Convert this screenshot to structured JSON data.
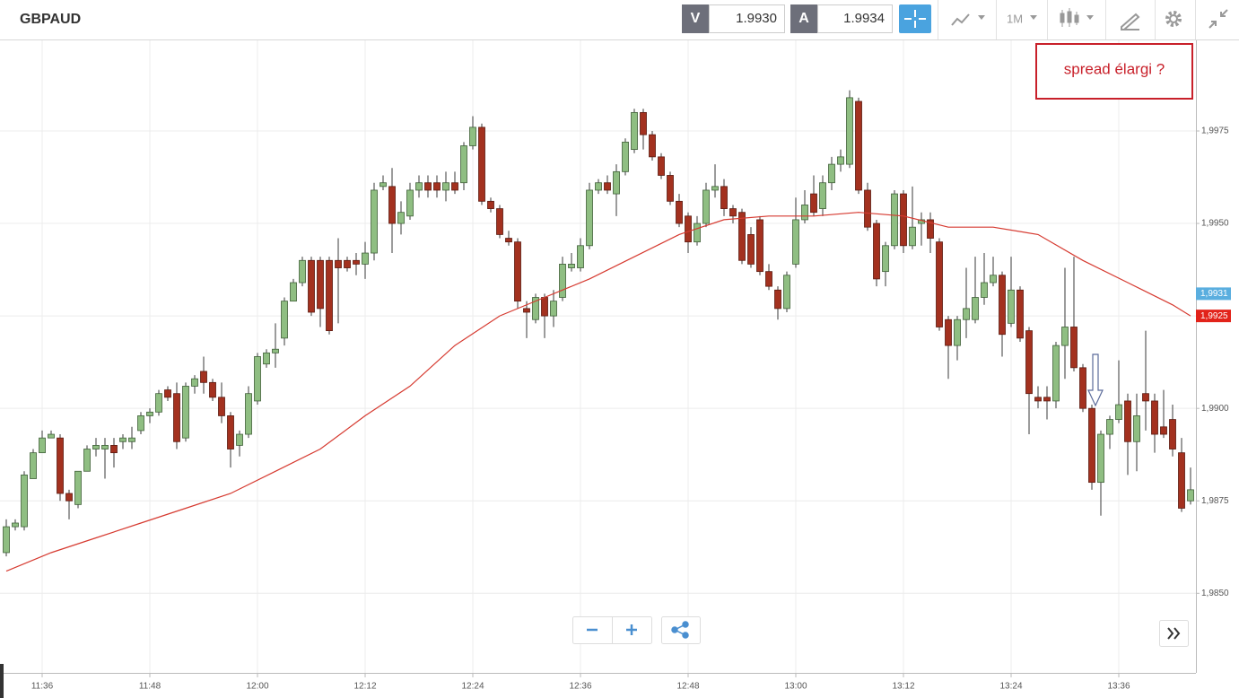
{
  "header": {
    "symbol": "GBPAUD",
    "sell": {
      "label": "V",
      "price": "1.9930"
    },
    "buy": {
      "label": "A",
      "price": "1.9934"
    },
    "timeframe": "1M"
  },
  "chart_data": {
    "type": "candlestick",
    "x": [
      692,
      693,
      694,
      695,
      696,
      697,
      698,
      699,
      700,
      701,
      702,
      703,
      704,
      705,
      706,
      707,
      708,
      709,
      710,
      711,
      712,
      713,
      714,
      715,
      716,
      717,
      718,
      719,
      720,
      721,
      722,
      723,
      724,
      725,
      726,
      727,
      728,
      729,
      730,
      731,
      732,
      733,
      734,
      735,
      736,
      737,
      738,
      739,
      740,
      741,
      742,
      743,
      744,
      745,
      746,
      747,
      748,
      749,
      750,
      751,
      752,
      753,
      754,
      755,
      756,
      757,
      758,
      759,
      760,
      761,
      762,
      763,
      764,
      765,
      766,
      767,
      768,
      769,
      770,
      771,
      772,
      773,
      774,
      775,
      776,
      777,
      778,
      779,
      780,
      781,
      782,
      783,
      784,
      785,
      786,
      787,
      788,
      789,
      790,
      791,
      792,
      793,
      794,
      795,
      796,
      797,
      798,
      799,
      800,
      801,
      802,
      803,
      804,
      805,
      806,
      807,
      808,
      809,
      810,
      811,
      812,
      813,
      814,
      815,
      816,
      817,
      818,
      819,
      820,
      821,
      822,
      823,
      824
    ],
    "open": [
      1.9861,
      1.9868,
      1.9868,
      1.9881,
      1.9888,
      1.9892,
      1.9892,
      1.9877,
      1.9874,
      1.9883,
      1.9889,
      1.9889,
      1.989,
      1.9891,
      1.9891,
      1.9894,
      1.9898,
      1.9899,
      1.9905,
      1.9904,
      1.9892,
      1.9906,
      1.991,
      1.9907,
      1.9903,
      1.9898,
      1.989,
      1.9893,
      1.9902,
      1.9912,
      1.9915,
      1.9919,
      1.9929,
      1.9934,
      1.994,
      1.994,
      1.994,
      1.994,
      1.994,
      1.994,
      1.9939,
      1.9942,
      1.996,
      1.996,
      1.995,
      1.9952,
      1.9959,
      1.9961,
      1.9961,
      1.9959,
      1.9961,
      1.9961,
      1.9971,
      1.9976,
      1.9956,
      1.9954,
      1.9946,
      1.9945,
      1.9927,
      1.9924,
      1.993,
      1.9925,
      1.993,
      1.9938,
      1.9938,
      1.9944,
      1.9959,
      1.9961,
      1.9958,
      1.9964,
      1.997,
      1.998,
      1.9974,
      1.9968,
      1.9963,
      1.9956,
      1.9952,
      1.9945,
      1.995,
      1.9959,
      1.996,
      1.9954,
      1.9953,
      1.9947,
      1.9951,
      1.9937,
      1.9932,
      1.9927,
      1.9939,
      1.9951,
      1.9958,
      1.9954,
      1.9961,
      1.9966,
      1.9966,
      1.9983,
      1.9959,
      1.995,
      1.9937,
      1.9944,
      1.9958,
      1.9944,
      1.995,
      1.9951,
      1.9945,
      1.9924,
      1.9917,
      1.9924,
      1.9924,
      1.993,
      1.9934,
      1.9936,
      1.9923,
      1.9932,
      1.9921,
      1.9903,
      1.9903,
      1.9902,
      1.9917,
      1.9922,
      1.9911,
      1.99,
      1.988,
      1.9893,
      1.9897,
      1.9902,
      1.9891,
      1.9904,
      1.9902,
      1.9895,
      1.9897,
      1.9888,
      1.9875
    ],
    "high": [
      1.987,
      1.987,
      1.9883,
      1.9889,
      1.9894,
      1.9894,
      1.9893,
      1.9878,
      1.9883,
      1.989,
      1.9892,
      1.9892,
      1.9892,
      1.9893,
      1.9895,
      1.9899,
      1.99,
      1.9905,
      1.9906,
      1.9907,
      1.9907,
      1.9909,
      1.9914,
      1.9908,
      1.9907,
      1.9899,
      1.9894,
      1.9906,
      1.9915,
      1.9916,
      1.9923,
      1.993,
      1.9935,
      1.9941,
      1.9941,
      1.9941,
      1.9941,
      1.9946,
      1.9941,
      1.9942,
      1.9945,
      1.9961,
      1.9963,
      1.9965,
      1.9956,
      1.9961,
      1.9963,
      1.9963,
      1.9963,
      1.9964,
      1.9964,
      1.9972,
      1.9979,
      1.9977,
      1.9957,
      1.9955,
      1.9948,
      1.9946,
      1.9929,
      1.9931,
      1.9931,
      1.9932,
      1.9941,
      1.9942,
      1.9946,
      1.9961,
      1.9962,
      1.9963,
      1.9966,
      1.9973,
      1.9981,
      1.9981,
      1.9975,
      1.9969,
      1.9964,
      1.9958,
      1.9953,
      1.9952,
      1.9961,
      1.9966,
      1.9962,
      1.9955,
      1.9954,
      1.9949,
      1.9952,
      1.9939,
      1.9933,
      1.9937,
      1.9957,
      1.9959,
      1.9963,
      1.9963,
      1.9968,
      1.997,
      1.9986,
      1.9984,
      1.9961,
      1.9951,
      1.9945,
      1.9959,
      1.9959,
      1.996,
      1.9953,
      1.9953,
      1.9946,
      1.9925,
      1.9925,
      1.9938,
      1.9941,
      1.9942,
      1.9941,
      1.9937,
      1.9941,
      1.9933,
      1.9922,
      1.9906,
      1.9906,
      1.9918,
      1.9938,
      1.9941,
      1.9912,
      1.9901,
      1.9894,
      1.9898,
      1.9913,
      1.9904,
      1.9904,
      1.9921,
      1.9904,
      1.9905,
      1.9901,
      1.9892,
      1.9884
    ],
    "low": [
      1.986,
      1.9867,
      1.9867,
      1.9881,
      1.9888,
      1.9892,
      1.9875,
      1.987,
      1.9873,
      1.9883,
      1.9887,
      1.9881,
      1.9884,
      1.9889,
      1.9889,
      1.9893,
      1.9896,
      1.9898,
      1.9902,
      1.9889,
      1.9891,
      1.9904,
      1.9904,
      1.9902,
      1.9896,
      1.9884,
      1.9887,
      1.9892,
      1.9901,
      1.9911,
      1.9911,
      1.9917,
      1.9929,
      1.9933,
      1.9925,
      1.9922,
      1.992,
      1.9923,
      1.9937,
      1.9936,
      1.9935,
      1.994,
      1.9959,
      1.9942,
      1.9947,
      1.9951,
      1.9957,
      1.9957,
      1.9957,
      1.9956,
      1.9958,
      1.9959,
      1.997,
      1.9955,
      1.9953,
      1.9946,
      1.9944,
      1.9927,
      1.9919,
      1.9923,
      1.9919,
      1.9922,
      1.9929,
      1.9937,
      1.9937,
      1.9943,
      1.9958,
      1.9958,
      1.9952,
      1.9963,
      1.9969,
      1.997,
      1.9967,
      1.9962,
      1.9955,
      1.9949,
      1.9942,
      1.9944,
      1.9949,
      1.9957,
      1.9952,
      1.995,
      1.9939,
      1.9938,
      1.9936,
      1.9932,
      1.9924,
      1.9926,
      1.9938,
      1.995,
      1.9952,
      1.9952,
      1.9959,
      1.9964,
      1.9965,
      1.9958,
      1.9948,
      1.9933,
      1.9933,
      1.9943,
      1.9942,
      1.9943,
      1.9944,
      1.9942,
      1.9921,
      1.9908,
      1.9913,
      1.9919,
      1.9923,
      1.9928,
      1.9933,
      1.9914,
      1.9922,
      1.9918,
      1.9893,
      1.99,
      1.9897,
      1.99,
      1.9908,
      1.991,
      1.9899,
      1.9878,
      1.9871,
      1.9889,
      1.9896,
      1.9882,
      1.9883,
      1.9894,
      1.9888,
      1.9892,
      1.9887,
      1.9872,
      1.9874
    ],
    "close": [
      1.9868,
      1.9869,
      1.9882,
      1.9888,
      1.9892,
      1.9893,
      1.9877,
      1.9875,
      1.9883,
      1.9889,
      1.989,
      1.989,
      1.9888,
      1.9892,
      1.9892,
      1.9898,
      1.9899,
      1.9904,
      1.9903,
      1.9891,
      1.9906,
      1.9908,
      1.9907,
      1.9903,
      1.9898,
      1.9889,
      1.9893,
      1.9904,
      1.9914,
      1.9915,
      1.9916,
      1.9929,
      1.9934,
      1.994,
      1.9926,
      1.9927,
      1.9921,
      1.9938,
      1.9938,
      1.9939,
      1.9942,
      1.9959,
      1.9961,
      1.995,
      1.9953,
      1.9959,
      1.9961,
      1.9959,
      1.9959,
      1.9961,
      1.9959,
      1.9971,
      1.9976,
      1.9956,
      1.9954,
      1.9947,
      1.9945,
      1.9929,
      1.9926,
      1.993,
      1.9925,
      1.9929,
      1.9939,
      1.9939,
      1.9944,
      1.9959,
      1.9961,
      1.9959,
      1.9964,
      1.9972,
      1.998,
      1.9974,
      1.9968,
      1.9963,
      1.9956,
      1.995,
      1.9945,
      1.995,
      1.9959,
      1.996,
      1.9954,
      1.9952,
      1.994,
      1.9939,
      1.9937,
      1.9933,
      1.9927,
      1.9936,
      1.9951,
      1.9955,
      1.9953,
      1.9961,
      1.9966,
      1.9968,
      1.9984,
      1.9959,
      1.9949,
      1.9935,
      1.9944,
      1.9958,
      1.9944,
      1.9949,
      1.9951,
      1.9946,
      1.9922,
      1.9917,
      1.9924,
      1.9927,
      1.993,
      1.9934,
      1.9936,
      1.992,
      1.9932,
      1.9919,
      1.9904,
      1.9902,
      1.9902,
      1.9917,
      1.9922,
      1.9911,
      1.99,
      1.988,
      1.9893,
      1.9897,
      1.9901,
      1.9891,
      1.9898,
      1.9902,
      1.9893,
      1.9893,
      1.9889,
      1.9873,
      1.9878
    ],
    "up_color": "#8fbe82",
    "down_color": "#a3311f",
    "ma": {
      "color": "#d63a30",
      "x": [
        692,
        697,
        702,
        707,
        712,
        717,
        722,
        727,
        732,
        737,
        742,
        747,
        752,
        757,
        762,
        767,
        772,
        777,
        782,
        787,
        792,
        797,
        802,
        807,
        812,
        817,
        822,
        824
      ],
      "values": [
        1.9856,
        1.9861,
        1.9865,
        1.9869,
        1.9873,
        1.9877,
        1.9883,
        1.9889,
        1.9898,
        1.9906,
        1.9917,
        1.9925,
        1.993,
        1.9935,
        1.9941,
        1.9947,
        1.9951,
        1.9952,
        1.9952,
        1.9953,
        1.9952,
        1.9949,
        1.9949,
        1.9947,
        1.994,
        1.9934,
        1.9928,
        1.9925
      ]
    },
    "xlim": [
      691.3,
      824.6
    ],
    "xticks": [
      {
        "value": 696,
        "label": "11:36"
      },
      {
        "value": 708,
        "label": "11:48"
      },
      {
        "value": 720,
        "label": "12:00"
      },
      {
        "value": 732,
        "label": "12:12"
      },
      {
        "value": 744,
        "label": "12:24"
      },
      {
        "value": 756,
        "label": "12:36"
      },
      {
        "value": 768,
        "label": "12:48"
      },
      {
        "value": 780,
        "label": "13:00"
      },
      {
        "value": 792,
        "label": "13:12"
      },
      {
        "value": 804,
        "label": "13:24"
      },
      {
        "value": 816,
        "label": "13:36"
      }
    ],
    "ylim": [
      1.9828,
      1.99995
    ],
    "yticks": [
      {
        "value": 1.985,
        "label": "1,9850"
      },
      {
        "value": 1.9875,
        "label": "1,9875"
      },
      {
        "value": 1.99,
        "label": "1,9900"
      },
      {
        "value": 1.9925,
        "label": "1,9925"
      },
      {
        "value": 1.995,
        "label": "1,9950"
      },
      {
        "value": 1.9975,
        "label": "1,9975"
      }
    ],
    "grid": true,
    "price_markers": [
      {
        "value": 1.9931,
        "label": "1,9931",
        "color": "#5aaedf"
      },
      {
        "value": 1.9925,
        "label": "1,9925",
        "color": "#e2231a"
      }
    ],
    "annotation": "spread élargi ?"
  }
}
